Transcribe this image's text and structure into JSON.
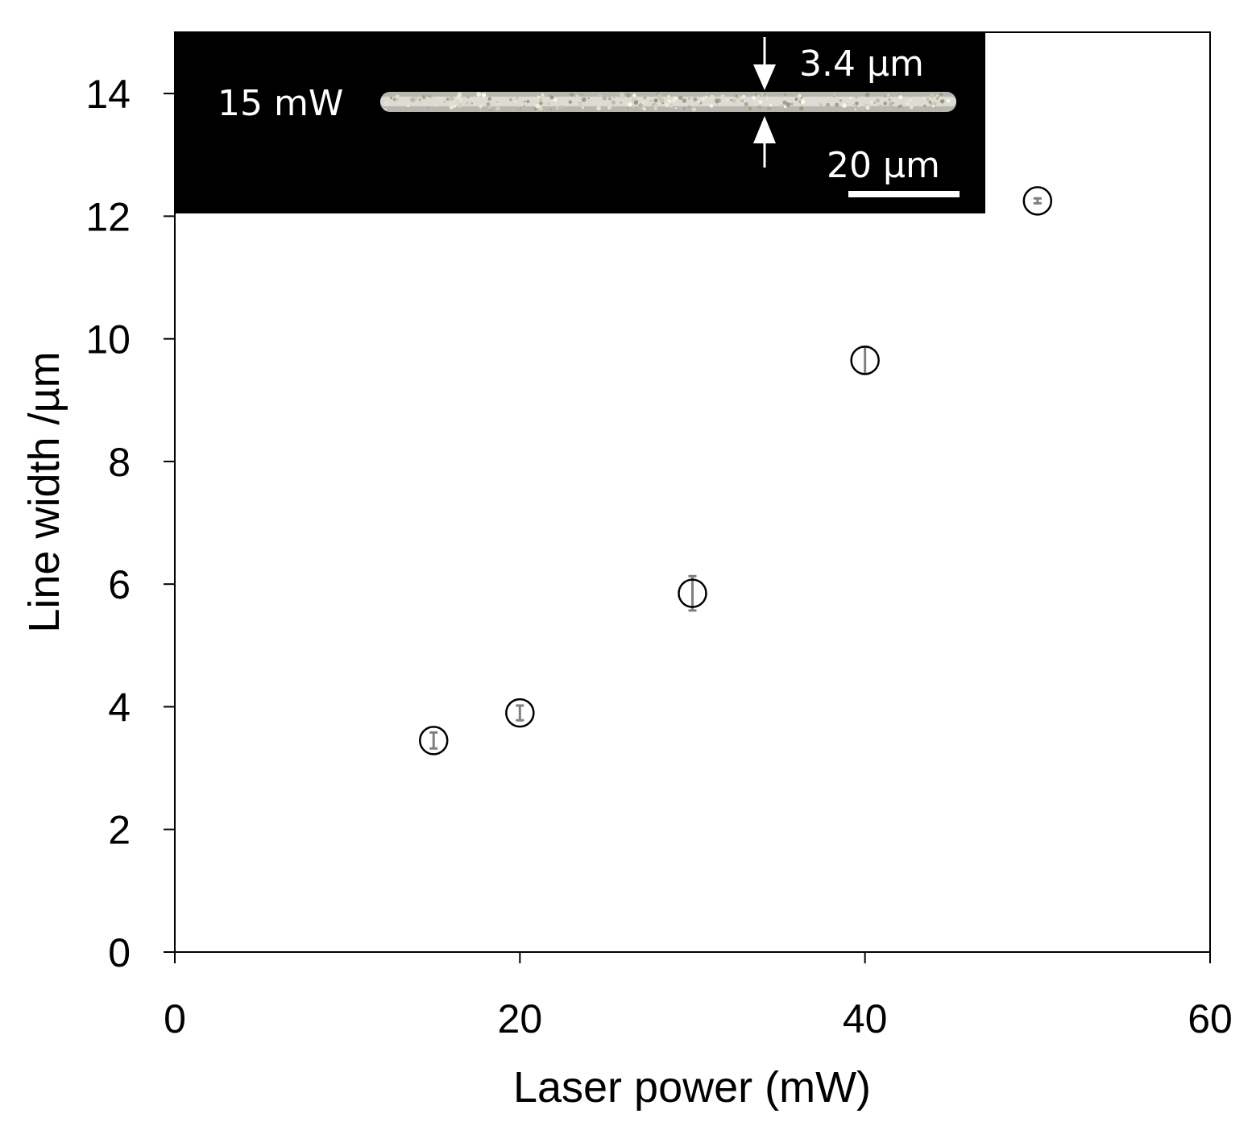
{
  "chart_data": {
    "type": "scatter",
    "title": "",
    "xlabel": "Laser power (mW)",
    "ylabel": "Line  width /µm",
    "xlim": [
      0,
      60
    ],
    "ylim": [
      0,
      15
    ],
    "x_ticks": [
      0,
      20,
      40,
      60
    ],
    "y_ticks": [
      0,
      2,
      4,
      6,
      8,
      10,
      12,
      14
    ],
    "grid": false,
    "legend": "none",
    "marker": "open-circle",
    "marker_color": "#000000",
    "errorbar_color": "#808080",
    "series": [
      {
        "x": [
          15,
          20,
          30,
          40,
          50
        ],
        "y": [
          3.45,
          3.9,
          5.85,
          9.65,
          12.25
        ],
        "yerr": [
          0.13,
          0.12,
          0.28,
          0.22,
          0.04
        ]
      }
    ],
    "inset": {
      "description": "micrograph",
      "power_label": "15 mW",
      "width_label": "3.4 µm",
      "scalebar_label": "20 µm",
      "background": "#000000",
      "text_color": "#ffffff"
    }
  }
}
